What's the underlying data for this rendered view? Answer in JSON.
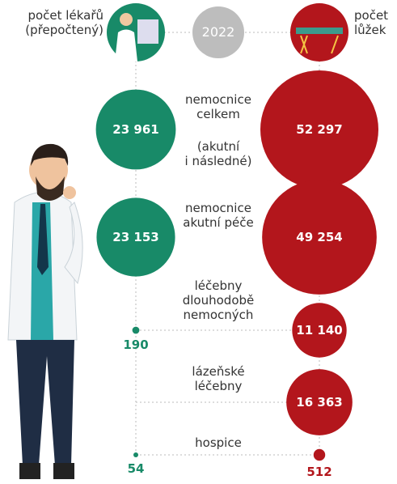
{
  "chart_data": {
    "type": "bubble",
    "year": "2022",
    "categories": [
      "nemocnice celkem",
      "nemocnice akutní péče",
      "léčebny dlouhodobě nemocných",
      "lázeňské léčebny",
      "hospice"
    ],
    "note": [
      "(akutní",
      "i následné)"
    ],
    "series": [
      {
        "name": "počet lékařů (přepočtený)",
        "color": "#188a68",
        "values": [
          23961,
          23153,
          190,
          null,
          54
        ],
        "value_labels": [
          "23 961",
          "23 153",
          "190",
          null,
          "54"
        ]
      },
      {
        "name": "počet lůžek",
        "color": "#b3161c",
        "values": [
          52297,
          49254,
          11140,
          16363,
          512
        ],
        "value_labels": [
          "52 297",
          "49 254",
          "11 140",
          "16 363",
          "512"
        ]
      }
    ]
  }
}
